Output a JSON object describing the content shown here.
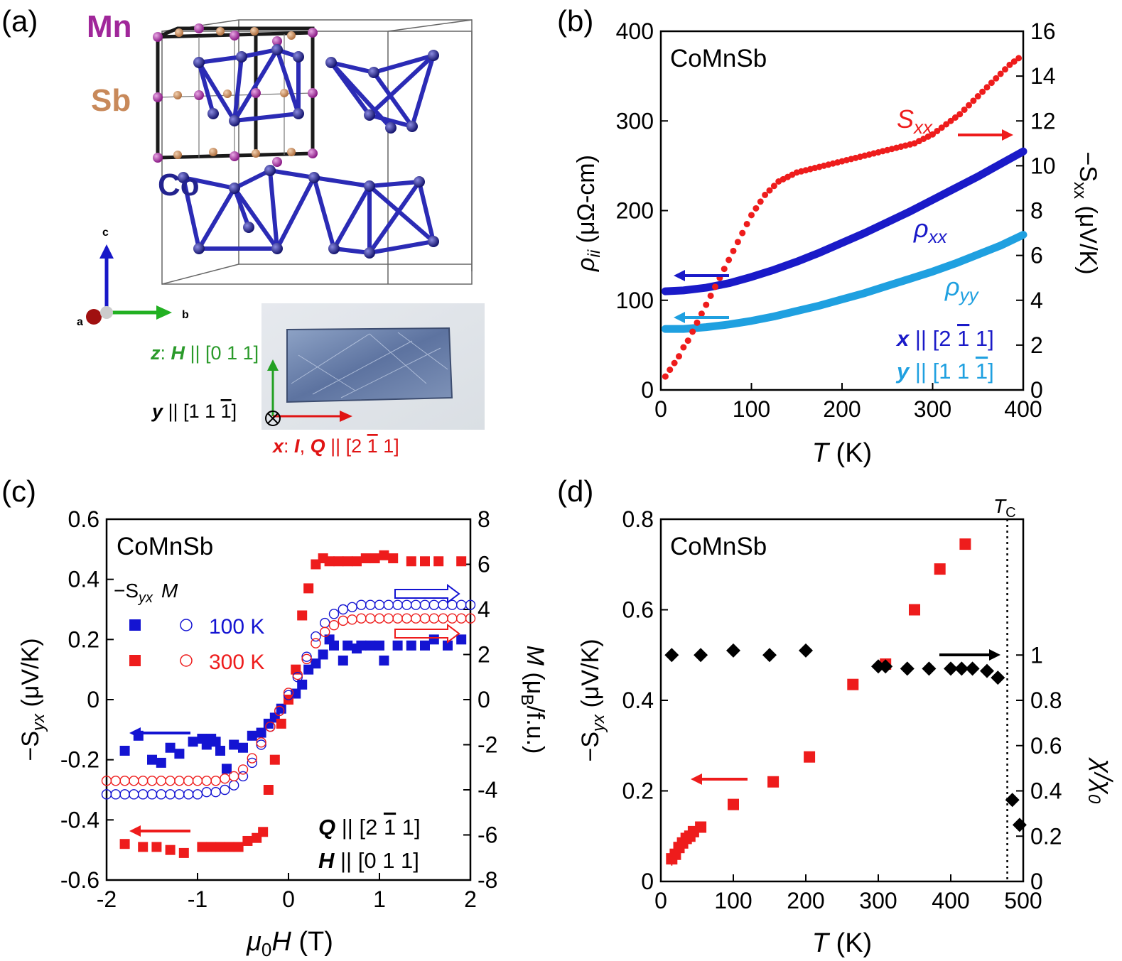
{
  "panels": {
    "a": {
      "label": "(a)",
      "atoms": {
        "mn": "Mn",
        "sb": "Sb",
        "co": "Co"
      },
      "axes": {
        "c": "c",
        "b": "b",
        "a": "a"
      },
      "directions": {
        "z_prefix": "z",
        "z_mid": ": ",
        "z_vec": "H",
        "z_par": " || [0 1 1]",
        "y_prefix": "y",
        "y_par": " || [1 1 ",
        "y_bar": "1",
        "y_end": "]",
        "x_prefix": "x",
        "x_mid": ": ",
        "x_i": "I",
        "x_comma": ", ",
        "x_q": "Q",
        "x_par": " || [2 ",
        "x_bar": "1",
        "x_end": " 1]"
      },
      "colors": {
        "mn": "#a0279a",
        "sb": "#c8895a",
        "co": "#23238f",
        "bond": "#2b2bb5"
      }
    },
    "b": {
      "label": "(b)",
      "title": "CoMnSb",
      "xlabel_T": "T",
      "xlabel_unit": " (K)",
      "ylabel_rho": "ρ",
      "ylabel_ii": "ii",
      "ylabel_unit": " (μΩ-cm)",
      "ylabel_right": "−S",
      "ylabel_right_sub": "xx",
      "ylabel_right_unit": " (μV/K)",
      "annot": {
        "sxx_main": "S",
        "sxx_sub": "xx",
        "rxx_main": "ρ",
        "rxx_sub": "xx",
        "ryy_main": "ρ",
        "ryy_sub": "yy"
      },
      "dir_x": {
        "v": "x",
        "t1": " || [2 ",
        "bar": "1",
        "t2": " 1]"
      },
      "dir_y": {
        "v": "y",
        "t1": " || [1 1 ",
        "bar": "1",
        "t2": "]"
      },
      "colors": {
        "sxx": "#ee1c1c",
        "rxx": "#1a1ac8",
        "ryy": "#1fa0e0"
      }
    },
    "c": {
      "label": "(c)",
      "title": "CoMnSb",
      "xlabel_mu": "μ",
      "xlabel_0": "0",
      "xlabel_H": "H",
      "xlabel_unit": " (T)",
      "ylabel": "−S",
      "ylabel_sub": "yx",
      "ylabel_unit": " (μV/K)",
      "ylabel_right_M": "M",
      "ylabel_right_unit": " (μ",
      "ylabel_right_B": "B",
      "ylabel_right_end": "/f.u.)",
      "legend": {
        "head_s": "−S",
        "head_sub": "yx",
        "head_m": "M",
        "t100": "100 K",
        "t300": "300 K"
      },
      "q_line": {
        "v": "Q",
        "t1": " || [2 ",
        "bar": "1",
        "t2": " 1]"
      },
      "h_line": {
        "v": "H",
        "t1": " || [0 1 1]"
      },
      "colors": {
        "t100": "#1414d2",
        "t300": "#ee1c1c"
      }
    },
    "d": {
      "label": "(d)",
      "title": "CoMnSb",
      "tc": "T",
      "tc_sub": "C",
      "xlabel_T": "T",
      "xlabel_unit": " (K)",
      "ylabel": "−S",
      "ylabel_sub": "yx",
      "ylabel_unit": " (μV/K)",
      "ylabel_right": "χ/χ",
      "ylabel_right_sub": "0",
      "colors": {
        "syx": "#ee1c1c",
        "chi": "#000000"
      }
    }
  },
  "chart_data": [
    {
      "panel": "b",
      "type": "scatter",
      "x_label": "T (K)",
      "xlim": [
        0,
        400
      ],
      "xticks": [
        0,
        100,
        200,
        300,
        400
      ],
      "y_label": "ρii (μΩ-cm)",
      "ylim": [
        0,
        400
      ],
      "yticks": [
        0,
        100,
        200,
        300,
        400
      ],
      "y2_label": "−Sxx (μV/K)",
      "y2lim": [
        0,
        16
      ],
      "y2ticks": [
        0,
        2,
        4,
        6,
        8,
        10,
        12,
        14,
        16
      ],
      "series": [
        {
          "name": "ρxx",
          "axis": "left",
          "style": "line",
          "x": [
            5,
            25,
            50,
            75,
            100,
            125,
            150,
            175,
            200,
            225,
            250,
            275,
            300,
            325,
            350,
            375,
            400
          ],
          "y": [
            110,
            111,
            114,
            119,
            126,
            134,
            143,
            153,
            164,
            175,
            187,
            199,
            212,
            225,
            238,
            252,
            266
          ]
        },
        {
          "name": "ρyy",
          "axis": "left",
          "style": "line",
          "x": [
            5,
            25,
            50,
            75,
            100,
            125,
            150,
            175,
            200,
            225,
            250,
            275,
            300,
            325,
            350,
            375,
            400
          ],
          "y": [
            68,
            68,
            70,
            73,
            77,
            82,
            88,
            94,
            101,
            108,
            116,
            124,
            132,
            141,
            151,
            161,
            173
          ]
        },
        {
          "name": "Sxx",
          "axis": "right",
          "style": "points",
          "x": [
            5,
            10,
            15,
            20,
            25,
            30,
            35,
            40,
            45,
            50,
            55,
            60,
            65,
            70,
            75,
            80,
            85,
            90,
            95,
            100,
            105,
            110,
            115,
            120,
            125,
            130,
            135,
            140,
            145,
            150,
            155,
            160,
            165,
            170,
            175,
            180,
            185,
            190,
            195,
            200,
            205,
            210,
            215,
            220,
            225,
            230,
            235,
            240,
            245,
            250,
            255,
            260,
            265,
            270,
            275,
            280,
            285,
            290,
            295,
            300,
            305,
            310,
            315,
            320,
            325,
            330,
            335,
            340,
            345,
            350,
            355,
            360,
            365,
            370,
            375,
            380,
            385,
            390,
            395
          ],
          "y": [
            0.6,
            0.9,
            1.2,
            1.5,
            1.9,
            2.2,
            2.6,
            3.0,
            3.4,
            3.8,
            4.2,
            4.6,
            5.0,
            5.4,
            5.8,
            6.2,
            6.6,
            7.0,
            7.4,
            7.8,
            8.1,
            8.4,
            8.7,
            8.9,
            9.1,
            9.3,
            9.4,
            9.5,
            9.6,
            9.7,
            9.75,
            9.8,
            9.85,
            9.9,
            9.95,
            10.0,
            10.05,
            10.1,
            10.15,
            10.2,
            10.25,
            10.3,
            10.35,
            10.4,
            10.45,
            10.5,
            10.55,
            10.6,
            10.65,
            10.7,
            10.75,
            10.8,
            10.85,
            10.9,
            10.95,
            11.0,
            11.1,
            11.2,
            11.3,
            11.4,
            11.55,
            11.7,
            11.85,
            12.0,
            12.15,
            12.3,
            12.5,
            12.7,
            12.9,
            13.1,
            13.3,
            13.5,
            13.7,
            13.9,
            14.1,
            14.3,
            14.5,
            14.65,
            14.8
          ]
        }
      ]
    },
    {
      "panel": "c",
      "type": "scatter",
      "x_label": "μ0H (T)",
      "xlim": [
        -2,
        2
      ],
      "xticks": [
        -2,
        -1,
        0,
        1,
        2
      ],
      "y_label": "−Syx (μV/K)",
      "ylim": [
        -0.6,
        0.6
      ],
      "yticks": [
        -0.6,
        -0.4,
        -0.2,
        0,
        0.2,
        0.4,
        0.6
      ],
      "y2_label": "M (μB/f.u.)",
      "y2lim": [
        -8,
        8
      ],
      "y2ticks": [
        -8,
        -6,
        -4,
        -2,
        0,
        2,
        4,
        6,
        8
      ],
      "series": [
        {
          "name": "−Syx 100 K",
          "axis": "left",
          "marker": "filled-square",
          "x": [
            -1.8,
            -1.65,
            -1.5,
            -1.4,
            -1.3,
            -1.2,
            -1.05,
            -0.95,
            -0.9,
            -0.85,
            -0.8,
            -0.75,
            -0.68,
            -0.6,
            -0.5,
            -0.4,
            -0.3,
            -0.22,
            -0.15,
            -0.08,
            0.0,
            0.08,
            0.15,
            0.22,
            0.3,
            0.38,
            0.45,
            0.5,
            0.6,
            0.65,
            0.75,
            0.8,
            0.9,
            1.0,
            1.05,
            1.2,
            1.35,
            1.5,
            1.6,
            1.75,
            1.9
          ],
          "y": [
            -0.17,
            -0.12,
            -0.2,
            -0.21,
            -0.16,
            -0.18,
            -0.14,
            -0.13,
            -0.15,
            -0.13,
            -0.14,
            -0.17,
            -0.23,
            -0.15,
            -0.16,
            -0.12,
            -0.11,
            -0.08,
            -0.06,
            -0.03,
            0.0,
            0.02,
            0.05,
            0.1,
            0.12,
            0.15,
            0.2,
            0.18,
            0.13,
            0.18,
            0.17,
            0.18,
            0.18,
            0.18,
            0.13,
            0.18,
            0.18,
            0.18,
            0.2,
            0.18,
            0.2
          ]
        },
        {
          "name": "−Syx 300 K",
          "axis": "left",
          "marker": "filled-square",
          "x": [
            -1.8,
            -1.6,
            -1.45,
            -1.3,
            -1.15,
            -0.95,
            -0.85,
            -0.75,
            -0.65,
            -0.55,
            -0.45,
            -0.35,
            -0.28,
            -0.22,
            -0.15,
            -0.08,
            0.0,
            0.08,
            0.15,
            0.22,
            0.3,
            0.38,
            0.45,
            0.55,
            0.65,
            0.75,
            0.85,
            0.95,
            1.05,
            1.15,
            1.35,
            1.5,
            1.65,
            1.9
          ],
          "y": [
            -0.48,
            -0.49,
            -0.49,
            -0.5,
            -0.51,
            -0.49,
            -0.49,
            -0.49,
            -0.49,
            -0.49,
            -0.47,
            -0.46,
            -0.44,
            -0.3,
            -0.2,
            -0.08,
            0.0,
            0.1,
            0.28,
            0.37,
            0.45,
            0.47,
            0.46,
            0.46,
            0.46,
            0.46,
            0.47,
            0.47,
            0.48,
            0.47,
            0.46,
            0.46,
            0.46,
            0.46
          ]
        },
        {
          "name": "M 100 K",
          "axis": "right",
          "marker": "open-circle",
          "x": [
            -2.0,
            -1.9,
            -1.8,
            -1.7,
            -1.6,
            -1.5,
            -1.4,
            -1.3,
            -1.2,
            -1.1,
            -1.0,
            -0.9,
            -0.8,
            -0.7,
            -0.6,
            -0.5,
            -0.4,
            -0.3,
            -0.2,
            -0.1,
            0.0,
            0.1,
            0.2,
            0.3,
            0.4,
            0.5,
            0.6,
            0.7,
            0.8,
            0.9,
            1.0,
            1.1,
            1.2,
            1.3,
            1.4,
            1.5,
            1.6,
            1.7,
            1.8,
            1.9,
            2.0
          ],
          "y": [
            -4.2,
            -4.2,
            -4.2,
            -4.2,
            -4.2,
            -4.2,
            -4.2,
            -4.2,
            -4.2,
            -4.2,
            -4.2,
            -4.1,
            -4.1,
            -4.0,
            -3.8,
            -3.4,
            -2.8,
            -2.0,
            -1.2,
            -0.5,
            0.2,
            1.0,
            1.9,
            2.8,
            3.4,
            3.8,
            4.0,
            4.1,
            4.2,
            4.2,
            4.2,
            4.2,
            4.2,
            4.2,
            4.2,
            4.2,
            4.2,
            4.2,
            4.2,
            4.2,
            4.2
          ]
        },
        {
          "name": "M 300 K",
          "axis": "right",
          "marker": "open-circle",
          "x": [
            -2.0,
            -1.9,
            -1.8,
            -1.7,
            -1.6,
            -1.5,
            -1.4,
            -1.3,
            -1.2,
            -1.1,
            -1.0,
            -0.9,
            -0.8,
            -0.7,
            -0.6,
            -0.5,
            -0.4,
            -0.3,
            -0.2,
            -0.1,
            0.0,
            0.1,
            0.2,
            0.3,
            0.4,
            0.5,
            0.6,
            0.7,
            0.8,
            0.9,
            1.0,
            1.1,
            1.2,
            1.3,
            1.4,
            1.5,
            1.6,
            1.7,
            1.8,
            1.9,
            2.0
          ],
          "y": [
            -3.6,
            -3.6,
            -3.6,
            -3.6,
            -3.6,
            -3.6,
            -3.6,
            -3.6,
            -3.6,
            -3.6,
            -3.6,
            -3.6,
            -3.6,
            -3.5,
            -3.4,
            -3.1,
            -2.6,
            -1.9,
            -1.2,
            -0.5,
            0.3,
            1.1,
            1.8,
            2.5,
            3.0,
            3.3,
            3.5,
            3.55,
            3.6,
            3.6,
            3.6,
            3.6,
            3.6,
            3.6,
            3.6,
            3.6,
            3.6,
            3.6,
            3.6,
            3.6,
            3.6
          ]
        }
      ]
    },
    {
      "panel": "d",
      "type": "scatter",
      "x_label": "T (K)",
      "xlim": [
        0,
        500
      ],
      "xticks": [
        0,
        100,
        200,
        300,
        400,
        500
      ],
      "y_label": "−Syx (μV/K)",
      "ylim": [
        0,
        0.8
      ],
      "yticks": [
        0,
        0.2,
        0.4,
        0.6,
        0.8
      ],
      "y2_label": "χ/χ0",
      "y2lim": [
        0,
        1.6
      ],
      "y2ticks": [
        0,
        0.2,
        0.4,
        0.6,
        0.8,
        1
      ],
      "tc_line": 478,
      "series": [
        {
          "name": "−Syx",
          "axis": "left",
          "marker": "filled-square",
          "x": [
            15,
            20,
            25,
            30,
            35,
            40,
            45,
            55,
            100,
            155,
            205,
            265,
            310,
            350,
            385,
            420
          ],
          "y": [
            0.05,
            0.06,
            0.075,
            0.085,
            0.095,
            0.1,
            0.11,
            0.12,
            0.17,
            0.22,
            0.275,
            0.435,
            0.48,
            0.6,
            0.69,
            0.745
          ],
          "err": [
            0.015,
            0.01,
            0.01,
            0.008,
            0.008,
            0.008,
            0.008,
            0.008,
            0.008,
            0.008,
            0.008,
            0.008,
            0.008,
            0.008,
            0.008,
            0.008
          ]
        },
        {
          "name": "χ/χ0",
          "axis": "right",
          "marker": "filled-diamond",
          "x": [
            15,
            55,
            100,
            150,
            200,
            300,
            310,
            340,
            370,
            400,
            415,
            430,
            450,
            465,
            485,
            495
          ],
          "y": [
            1.0,
            1.0,
            1.02,
            1.0,
            1.02,
            0.95,
            0.95,
            0.94,
            0.94,
            0.94,
            0.94,
            0.94,
            0.93,
            0.9,
            0.36,
            0.25
          ]
        }
      ]
    }
  ]
}
